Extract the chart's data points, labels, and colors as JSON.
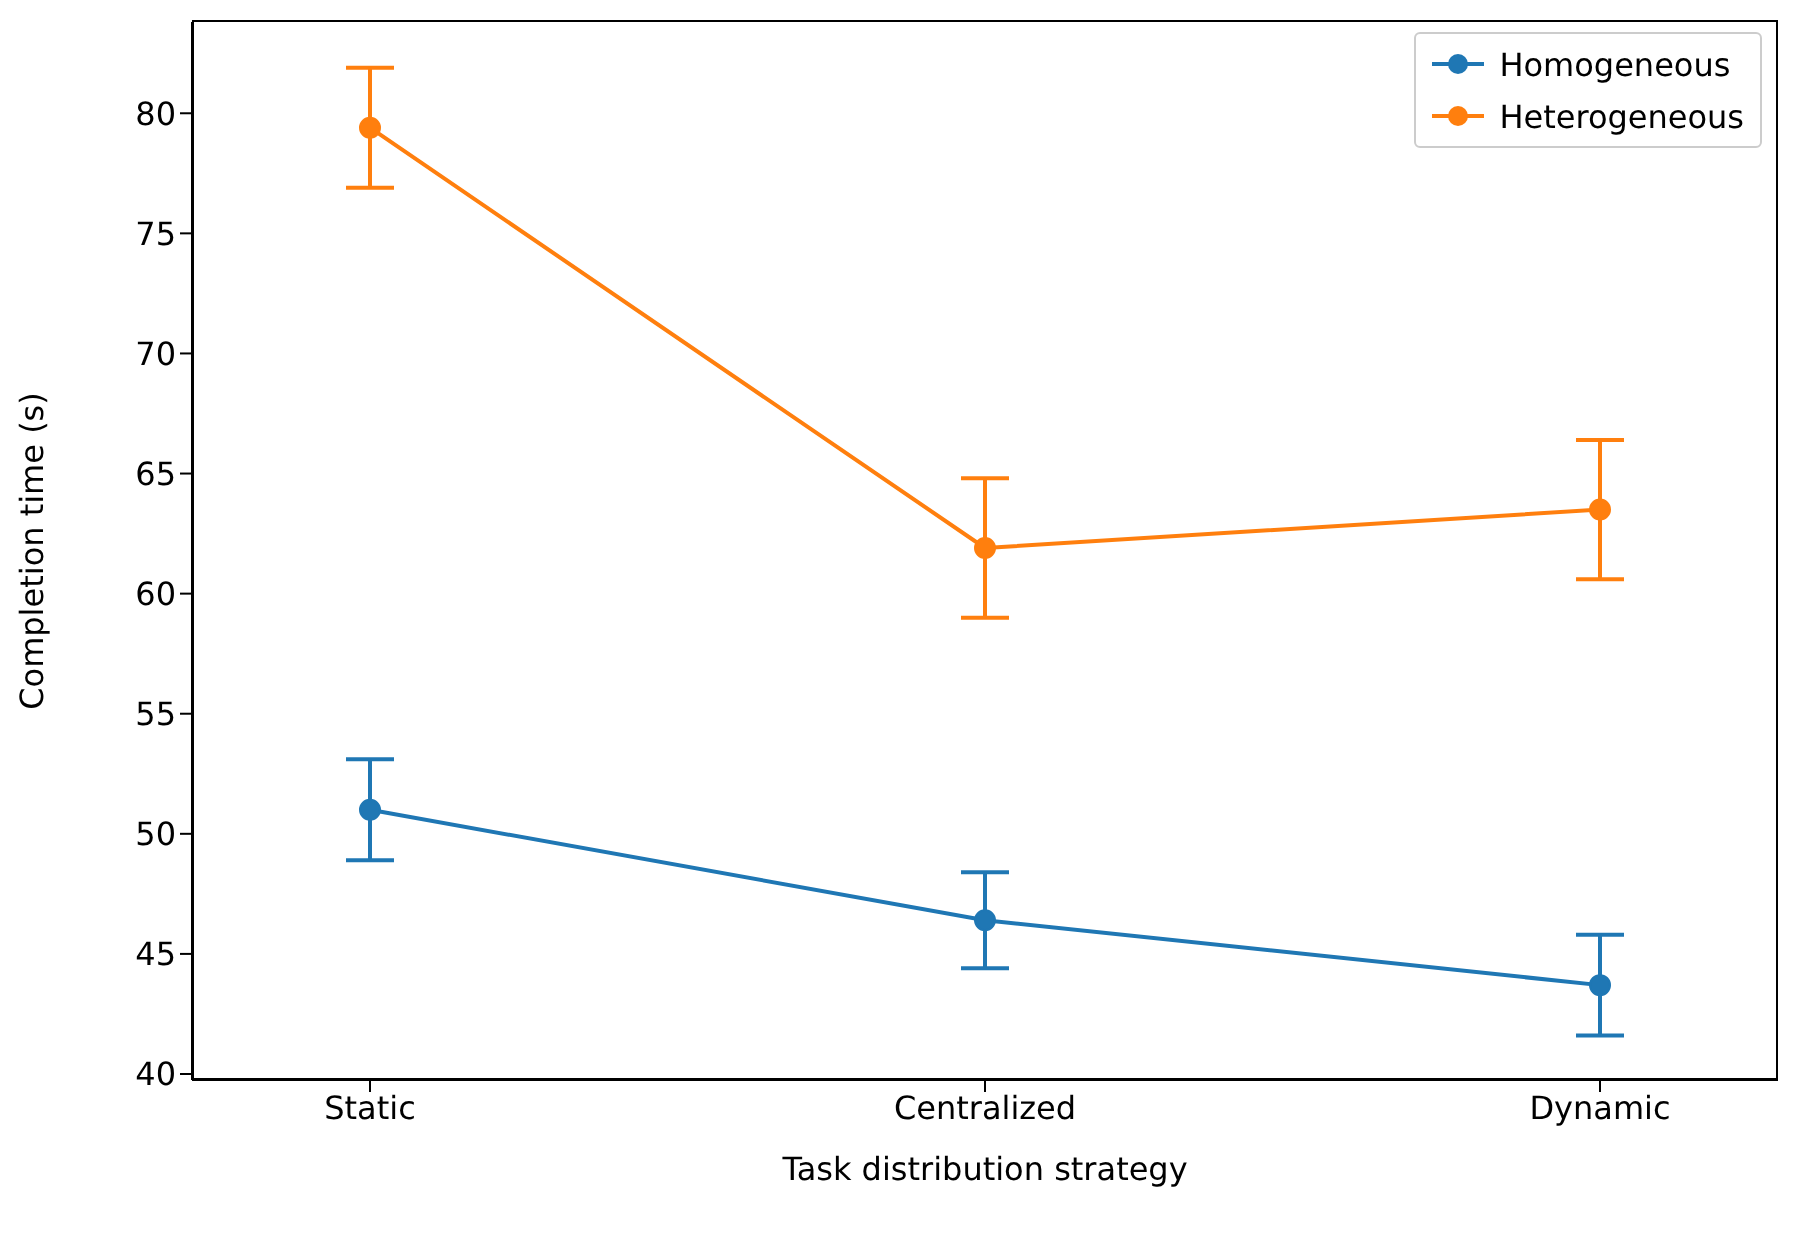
{
  "chart_data": {
    "type": "line",
    "xlabel": "Task distribution strategy",
    "ylabel": "Completion time (s)",
    "categories": [
      "Static",
      "Centralized",
      "Dynamic"
    ],
    "ylim": [
      39.75,
      83.8
    ],
    "yticks": [
      40,
      45,
      50,
      55,
      60,
      65,
      70,
      75,
      80
    ],
    "series": [
      {
        "name": "Homogeneous",
        "color": "#1f77b4",
        "values": [
          51.0,
          46.4,
          43.7
        ],
        "errors": [
          2.1,
          2.0,
          2.1
        ]
      },
      {
        "name": "Heterogeneous",
        "color": "#ff7f0e",
        "values": [
          79.4,
          61.9,
          63.5
        ],
        "errors": [
          2.5,
          2.9,
          2.9
        ]
      }
    ],
    "marker": "circle",
    "line_style": "solid",
    "legend": "top right"
  }
}
